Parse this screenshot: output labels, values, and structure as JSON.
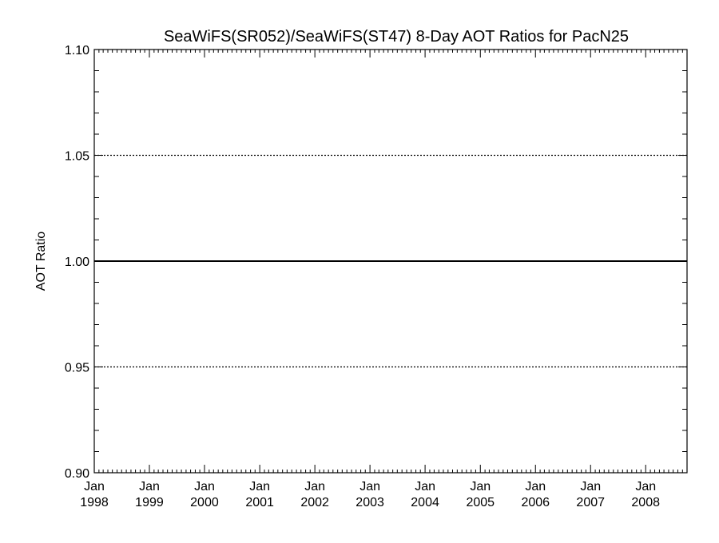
{
  "chart_data": {
    "type": "line",
    "title": "SeaWiFS(SR052)/SeaWiFS(ST47) 8-Day AOT Ratios for PacN25",
    "ylabel": "AOT Ratio",
    "xlabel": "",
    "ylim": [
      0.9,
      1.1
    ],
    "yticks": [
      "0.90",
      "0.95",
      "1.00",
      "1.05",
      "1.10"
    ],
    "ygrid_values": [
      0.95,
      1.0,
      1.05
    ],
    "xlim": [
      "1998-01-01",
      "2008-10-01"
    ],
    "xticks": [
      {
        "month": "Jan",
        "year": "1998",
        "date": "1998-01-01"
      },
      {
        "month": "Jan",
        "year": "1999",
        "date": "1999-01-01"
      },
      {
        "month": "Jan",
        "year": "2000",
        "date": "2000-01-01"
      },
      {
        "month": "Jan",
        "year": "2001",
        "date": "2001-01-01"
      },
      {
        "month": "Jan",
        "year": "2002",
        "date": "2002-01-01"
      },
      {
        "month": "Jan",
        "year": "2003",
        "date": "2003-01-01"
      },
      {
        "month": "Jan",
        "year": "2004",
        "date": "2004-01-01"
      },
      {
        "month": "Jan",
        "year": "2005",
        "date": "2005-01-01"
      },
      {
        "month": "Jan",
        "year": "2006",
        "date": "2006-01-01"
      },
      {
        "month": "Jan",
        "year": "2007",
        "date": "2007-01-01"
      },
      {
        "month": "Jan",
        "year": "2008",
        "date": "2008-01-01"
      }
    ],
    "series": [
      {
        "x": [
          "1998-01-01",
          "2008-10-01"
        ],
        "y": [
          1.0,
          1.0
        ]
      }
    ]
  }
}
